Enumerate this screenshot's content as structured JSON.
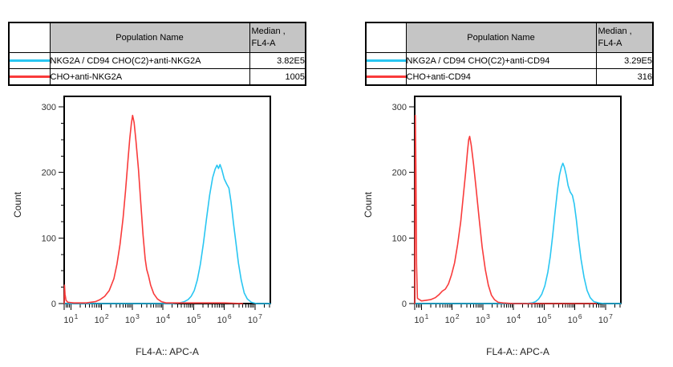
{
  "panels": [
    {
      "table": {
        "header": {
          "population": "Population Name",
          "median_line1": "Median ,",
          "median_line2": "FL4-A"
        },
        "rows": [
          {
            "color": "#29c6f2",
            "name": "NKG2A / CD94 CHO(C2)+anti-NKG2A",
            "median": "3.82E5"
          },
          {
            "color": "#f93b3b",
            "name": "CHO+anti-NKG2A",
            "median": "1005"
          }
        ]
      }
    },
    {
      "table": {
        "header": {
          "population": "Population Name",
          "median_line1": "Median ,",
          "median_line2": "FL4-A"
        },
        "rows": [
          {
            "color": "#29c6f2",
            "name": "NKG2A / CD94 CHO(C2)+anti-CD94",
            "median": "3.29E5"
          },
          {
            "color": "#f93b3b",
            "name": "CHO+anti-CD94",
            "median": "316"
          }
        ]
      }
    }
  ],
  "chart_data": [
    {
      "type": "line",
      "subtype": "flow-cytometry-histogram-overlay",
      "title": "",
      "xlabel": "FL4-A:: APC-A",
      "ylabel": "Count",
      "x_scale": "log10",
      "xlim_log10": [
        0.78,
        7.5
      ],
      "x_tick_exponents": [
        1,
        2,
        3,
        4,
        5,
        6,
        7
      ],
      "ylim": [
        0,
        316
      ],
      "y_ticks": [
        0,
        100,
        200,
        300
      ],
      "y_minor_step": 25,
      "grid": false,
      "legend": "table-above",
      "series": [
        {
          "key": "nkg2a-cd94-cho-anti-nkg2a",
          "name": "NKG2A / CD94 CHO(C2)+anti-NKG2A",
          "color": "#29c6f2",
          "median": "3.82E5",
          "points": [
            [
              0.78,
              0
            ],
            [
              3.5,
              0
            ],
            [
              4.3,
              0
            ],
            [
              4.55,
              1
            ],
            [
              4.7,
              3
            ],
            [
              4.82,
              6
            ],
            [
              4.92,
              11
            ],
            [
              5.02,
              20
            ],
            [
              5.12,
              36
            ],
            [
              5.22,
              60
            ],
            [
              5.32,
              92
            ],
            [
              5.42,
              130
            ],
            [
              5.52,
              165
            ],
            [
              5.62,
              192
            ],
            [
              5.7,
              205
            ],
            [
              5.76,
              211
            ],
            [
              5.81,
              206
            ],
            [
              5.86,
              212
            ],
            [
              5.92,
              204
            ],
            [
              6.0,
              190
            ],
            [
              6.08,
              182
            ],
            [
              6.15,
              176
            ],
            [
              6.22,
              155
            ],
            [
              6.3,
              122
            ],
            [
              6.38,
              92
            ],
            [
              6.46,
              62
            ],
            [
              6.55,
              36
            ],
            [
              6.65,
              16
            ],
            [
              6.75,
              7
            ],
            [
              6.88,
              2
            ],
            [
              7.05,
              0
            ],
            [
              7.5,
              0
            ]
          ]
        },
        {
          "key": "cho-anti-nkg2a",
          "name": "CHO+anti-NKG2A",
          "color": "#f93b3b",
          "median": "1005",
          "points": [
            [
              0.78,
              0
            ],
            [
              0.79,
              28
            ],
            [
              0.81,
              14
            ],
            [
              0.84,
              5
            ],
            [
              0.9,
              2
            ],
            [
              1.1,
              1
            ],
            [
              1.5,
              1
            ],
            [
              1.8,
              3
            ],
            [
              1.95,
              6
            ],
            [
              2.1,
              11
            ],
            [
              2.25,
              20
            ],
            [
              2.4,
              38
            ],
            [
              2.5,
              60
            ],
            [
              2.6,
              90
            ],
            [
              2.7,
              130
            ],
            [
              2.78,
              172
            ],
            [
              2.86,
              218
            ],
            [
              2.92,
              252
            ],
            [
              2.97,
              275
            ],
            [
              3.01,
              287
            ],
            [
              3.06,
              276
            ],
            [
              3.12,
              248
            ],
            [
              3.2,
              205
            ],
            [
              3.28,
              152
            ],
            [
              3.35,
              105
            ],
            [
              3.42,
              68
            ],
            [
              3.47,
              52
            ],
            [
              3.53,
              42
            ],
            [
              3.6,
              28
            ],
            [
              3.7,
              15
            ],
            [
              3.82,
              7
            ],
            [
              3.95,
              3
            ],
            [
              4.1,
              1
            ],
            [
              4.5,
              1
            ],
            [
              5.2,
              1
            ],
            [
              6.0,
              1
            ],
            [
              6.6,
              0
            ]
          ]
        }
      ]
    },
    {
      "type": "line",
      "subtype": "flow-cytometry-histogram-overlay",
      "title": "",
      "xlabel": "FL4-A:: APC-A",
      "ylabel": "Count",
      "x_scale": "log10",
      "xlim_log10": [
        0.78,
        7.5
      ],
      "x_tick_exponents": [
        1,
        2,
        3,
        4,
        5,
        6,
        7
      ],
      "ylim": [
        0,
        316
      ],
      "y_ticks": [
        0,
        100,
        200,
        300
      ],
      "y_minor_step": 25,
      "grid": false,
      "legend": "table-above",
      "series": [
        {
          "key": "nkg2a-cd94-cho-anti-cd94",
          "name": "NKG2A / CD94 CHO(C2)+anti-CD94",
          "color": "#29c6f2",
          "median": "3.29E5",
          "points": [
            [
              0.78,
              0
            ],
            [
              4.4,
              0
            ],
            [
              4.6,
              1
            ],
            [
              4.72,
              3
            ],
            [
              4.82,
              7
            ],
            [
              4.92,
              14
            ],
            [
              5.02,
              27
            ],
            [
              5.12,
              48
            ],
            [
              5.2,
              72
            ],
            [
              5.28,
              105
            ],
            [
              5.36,
              142
            ],
            [
              5.44,
              175
            ],
            [
              5.5,
              196
            ],
            [
              5.56,
              208
            ],
            [
              5.61,
              214
            ],
            [
              5.66,
              208
            ],
            [
              5.72,
              196
            ],
            [
              5.78,
              180
            ],
            [
              5.85,
              170
            ],
            [
              5.92,
              165
            ],
            [
              5.98,
              152
            ],
            [
              6.05,
              128
            ],
            [
              6.12,
              98
            ],
            [
              6.2,
              68
            ],
            [
              6.3,
              40
            ],
            [
              6.4,
              20
            ],
            [
              6.5,
              9
            ],
            [
              6.62,
              3
            ],
            [
              6.78,
              1
            ],
            [
              6.95,
              0
            ],
            [
              7.5,
              0
            ]
          ]
        },
        {
          "key": "cho-anti-cd94",
          "name": "CHO+anti-CD94",
          "color": "#f93b3b",
          "median": "316",
          "points": [
            [
              0.78,
              0
            ],
            [
              0.79,
              160
            ],
            [
              0.8,
              287
            ],
            [
              0.82,
              210
            ],
            [
              0.84,
              60
            ],
            [
              0.87,
              8
            ],
            [
              1.0,
              4
            ],
            [
              1.15,
              5
            ],
            [
              1.3,
              6
            ],
            [
              1.45,
              9
            ],
            [
              1.58,
              14
            ],
            [
              1.68,
              19
            ],
            [
              1.78,
              22
            ],
            [
              1.88,
              30
            ],
            [
              1.98,
              44
            ],
            [
              2.08,
              62
            ],
            [
              2.18,
              90
            ],
            [
              2.28,
              125
            ],
            [
              2.36,
              162
            ],
            [
              2.44,
              200
            ],
            [
              2.5,
              232
            ],
            [
              2.54,
              250
            ],
            [
              2.57,
              255
            ],
            [
              2.62,
              242
            ],
            [
              2.7,
              212
            ],
            [
              2.78,
              176
            ],
            [
              2.88,
              130
            ],
            [
              2.98,
              86
            ],
            [
              3.08,
              52
            ],
            [
              3.18,
              28
            ],
            [
              3.28,
              13
            ],
            [
              3.38,
              6
            ],
            [
              3.5,
              2
            ],
            [
              3.65,
              1
            ],
            [
              4.0,
              0
            ],
            [
              6.7,
              0
            ]
          ]
        }
      ]
    }
  ]
}
